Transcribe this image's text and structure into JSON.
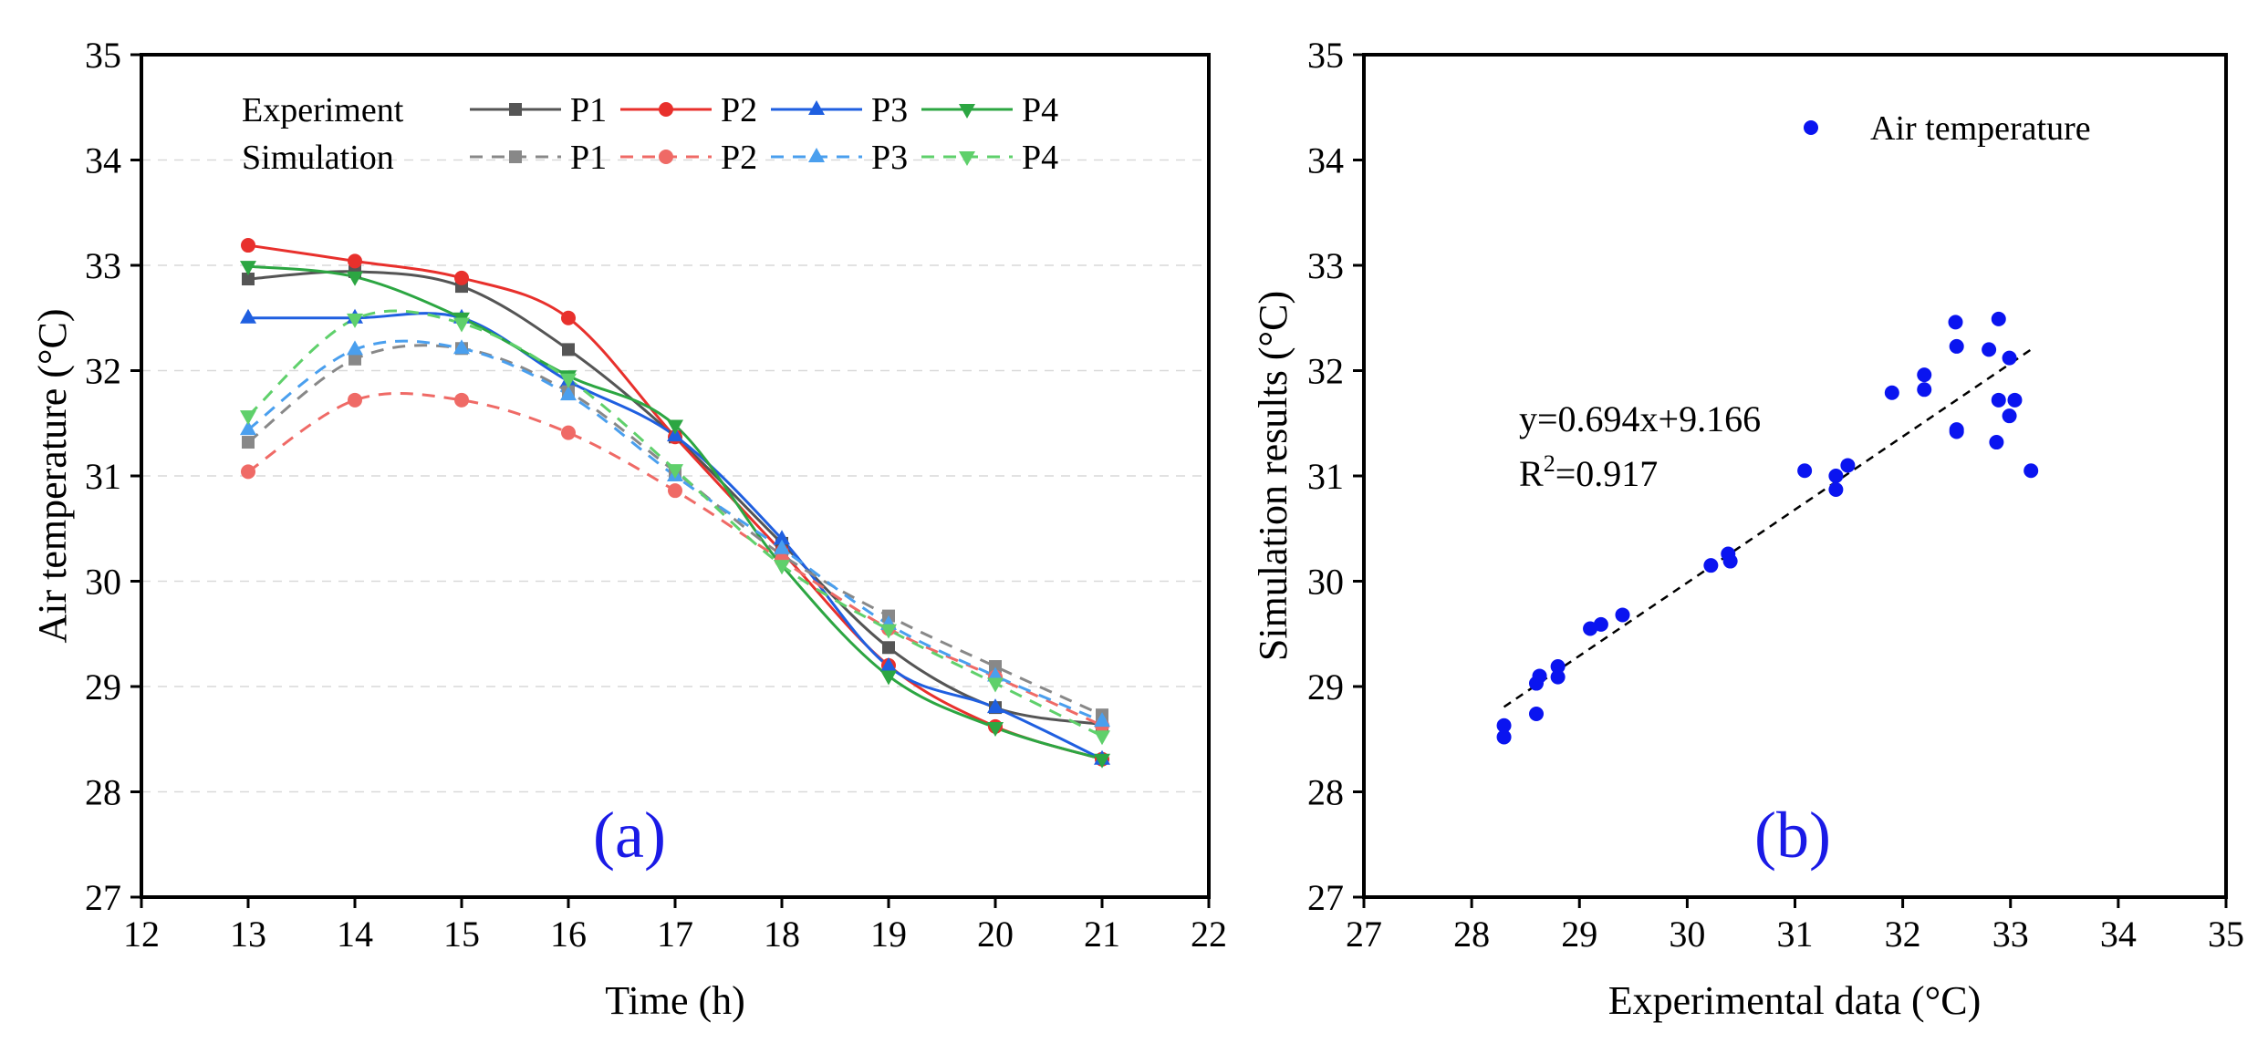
{
  "chart_data": [
    {
      "type": "line",
      "panel_label": "(a)",
      "xlabel": "Time (h)",
      "ylabel": "Air temperature (°C)",
      "xlim": [
        12,
        22
      ],
      "ylim": [
        27,
        35
      ],
      "xticks": [
        "12",
        "13",
        "14",
        "15",
        "16",
        "17",
        "18",
        "19",
        "20",
        "21",
        "22"
      ],
      "yticks": [
        "27",
        "28",
        "29",
        "30",
        "31",
        "32",
        "33",
        "34",
        "35"
      ],
      "grid": true,
      "legend": {
        "position": "top",
        "row_labels": [
          "Experiment",
          "Simulation"
        ]
      },
      "x": [
        13,
        14,
        15,
        16,
        17,
        18,
        19,
        20,
        21
      ],
      "series": [
        {
          "name": "P1",
          "group": "Experiment",
          "color": "#555555",
          "marker": "square",
          "dash": false,
          "values": [
            32.87,
            32.94,
            32.8,
            32.2,
            31.37,
            30.36,
            29.37,
            28.8,
            28.64
          ]
        },
        {
          "name": "P2",
          "group": "Experiment",
          "color": "#e8302c",
          "marker": "circle",
          "dash": false,
          "values": [
            33.19,
            33.04,
            32.88,
            32.5,
            31.37,
            30.28,
            29.2,
            28.62,
            28.31
          ]
        },
        {
          "name": "P3",
          "group": "Experiment",
          "color": "#1f5fe0",
          "marker": "triangle-up",
          "dash": false,
          "values": [
            32.5,
            32.5,
            32.5,
            31.9,
            31.38,
            30.4,
            29.19,
            28.8,
            28.31
          ]
        },
        {
          "name": "P4",
          "group": "Experiment",
          "color": "#2ca642",
          "marker": "triangle-down",
          "dash": false,
          "values": [
            32.99,
            32.89,
            32.5,
            31.95,
            31.48,
            30.15,
            29.1,
            28.61,
            28.31
          ]
        },
        {
          "name": "P1",
          "group": "Simulation",
          "color": "#888888",
          "marker": "square",
          "dash": true,
          "values": [
            31.32,
            32.11,
            32.21,
            31.8,
            31.04,
            30.25,
            29.67,
            29.19,
            28.73
          ]
        },
        {
          "name": "P2",
          "group": "Simulation",
          "color": "#ef6a66",
          "marker": "circle",
          "dash": true,
          "values": [
            31.04,
            31.72,
            31.72,
            31.41,
            30.86,
            30.2,
            29.55,
            29.09,
            28.63
          ]
        },
        {
          "name": "P3",
          "group": "Simulation",
          "color": "#4a9fee",
          "marker": "triangle-up",
          "dash": true,
          "values": [
            31.44,
            32.2,
            32.21,
            31.77,
            31.0,
            30.31,
            29.59,
            29.1,
            28.67
          ]
        },
        {
          "name": "P4",
          "group": "Simulation",
          "color": "#5fd06b",
          "marker": "triangle-down",
          "dash": true,
          "values": [
            31.57,
            32.49,
            32.45,
            31.92,
            31.06,
            30.15,
            29.54,
            29.03,
            28.53
          ]
        }
      ]
    },
    {
      "type": "scatter",
      "panel_label": "(b)",
      "xlabel": "Experimental data (°C)",
      "ylabel": "Simulation results (°C)",
      "xlim": [
        27,
        35
      ],
      "ylim": [
        27,
        35
      ],
      "xticks": [
        "27",
        "28",
        "29",
        "30",
        "31",
        "32",
        "33",
        "34",
        "35"
      ],
      "yticks": [
        "27",
        "28",
        "29",
        "30",
        "31",
        "32",
        "33",
        "34",
        "35"
      ],
      "grid": false,
      "legend": {
        "position": "top-right"
      },
      "series": [
        {
          "name": "Air temperature",
          "color": "#0a14f0",
          "points": [
            [
              28.3,
              28.63
            ],
            [
              28.3,
              28.52
            ],
            [
              28.6,
              29.03
            ],
            [
              28.63,
              29.1
            ],
            [
              28.6,
              28.74
            ],
            [
              28.8,
              29.19
            ],
            [
              28.8,
              29.09
            ],
            [
              29.1,
              29.55
            ],
            [
              29.2,
              29.59
            ],
            [
              29.4,
              29.68
            ],
            [
              30.22,
              30.15
            ],
            [
              30.38,
              30.26
            ],
            [
              30.4,
              30.19
            ],
            [
              31.09,
              31.05
            ],
            [
              31.38,
              31.0
            ],
            [
              31.38,
              30.87
            ],
            [
              31.49,
              31.1
            ],
            [
              31.9,
              31.79
            ],
            [
              32.2,
              31.96
            ],
            [
              32.2,
              31.82
            ],
            [
              32.49,
              32.46
            ],
            [
              32.5,
              32.23
            ],
            [
              32.5,
              31.44
            ],
            [
              32.5,
              31.42
            ],
            [
              32.8,
              32.2
            ],
            [
              32.87,
              31.32
            ],
            [
              32.89,
              32.49
            ],
            [
              32.89,
              31.72
            ],
            [
              32.99,
              32.12
            ],
            [
              32.99,
              31.57
            ],
            [
              33.04,
              31.72
            ],
            [
              33.19,
              31.05
            ]
          ]
        }
      ],
      "fit_line": {
        "x_range": [
          28.3,
          33.2
        ],
        "slope": 0.694,
        "intercept": 9.166
      },
      "annotations": {
        "equation": "y=0.694x+9.166",
        "r2_prefix": "R",
        "r2_sup": "2",
        "r2_suffix": "=0.917"
      }
    }
  ]
}
